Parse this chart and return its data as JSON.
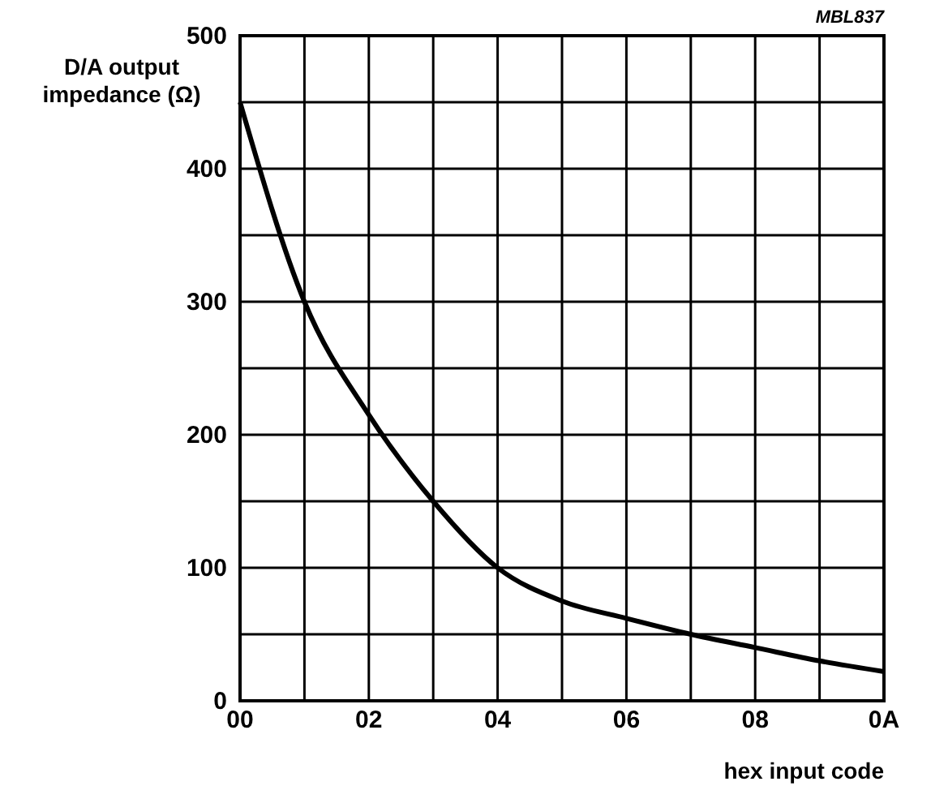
{
  "chart_data": {
    "type": "line",
    "xlabel": "hex input code",
    "ylabel": "D/A output impedance (Ω)",
    "annotations": [
      "MBL837"
    ],
    "categories": [
      "00",
      null,
      "02",
      null,
      "04",
      null,
      "06",
      null,
      "08",
      null,
      "0A"
    ],
    "series": [
      {
        "color": "#000000",
        "values": [
          450,
          300,
          215,
          150,
          100,
          75,
          62,
          50,
          40,
          30,
          22
        ]
      }
    ],
    "ylim": [
      0,
      500
    ],
    "yticks": [
      0,
      {
        "value": 50,
        "label": null
      },
      100,
      {
        "value": 150,
        "label": null
      },
      200,
      {
        "value": 250,
        "label": null
      },
      300,
      {
        "value": 350,
        "label": null
      },
      400,
      {
        "value": 450,
        "label": null
      },
      500
    ],
    "grid": true,
    "marker": "none",
    "line_style": "solid"
  }
}
